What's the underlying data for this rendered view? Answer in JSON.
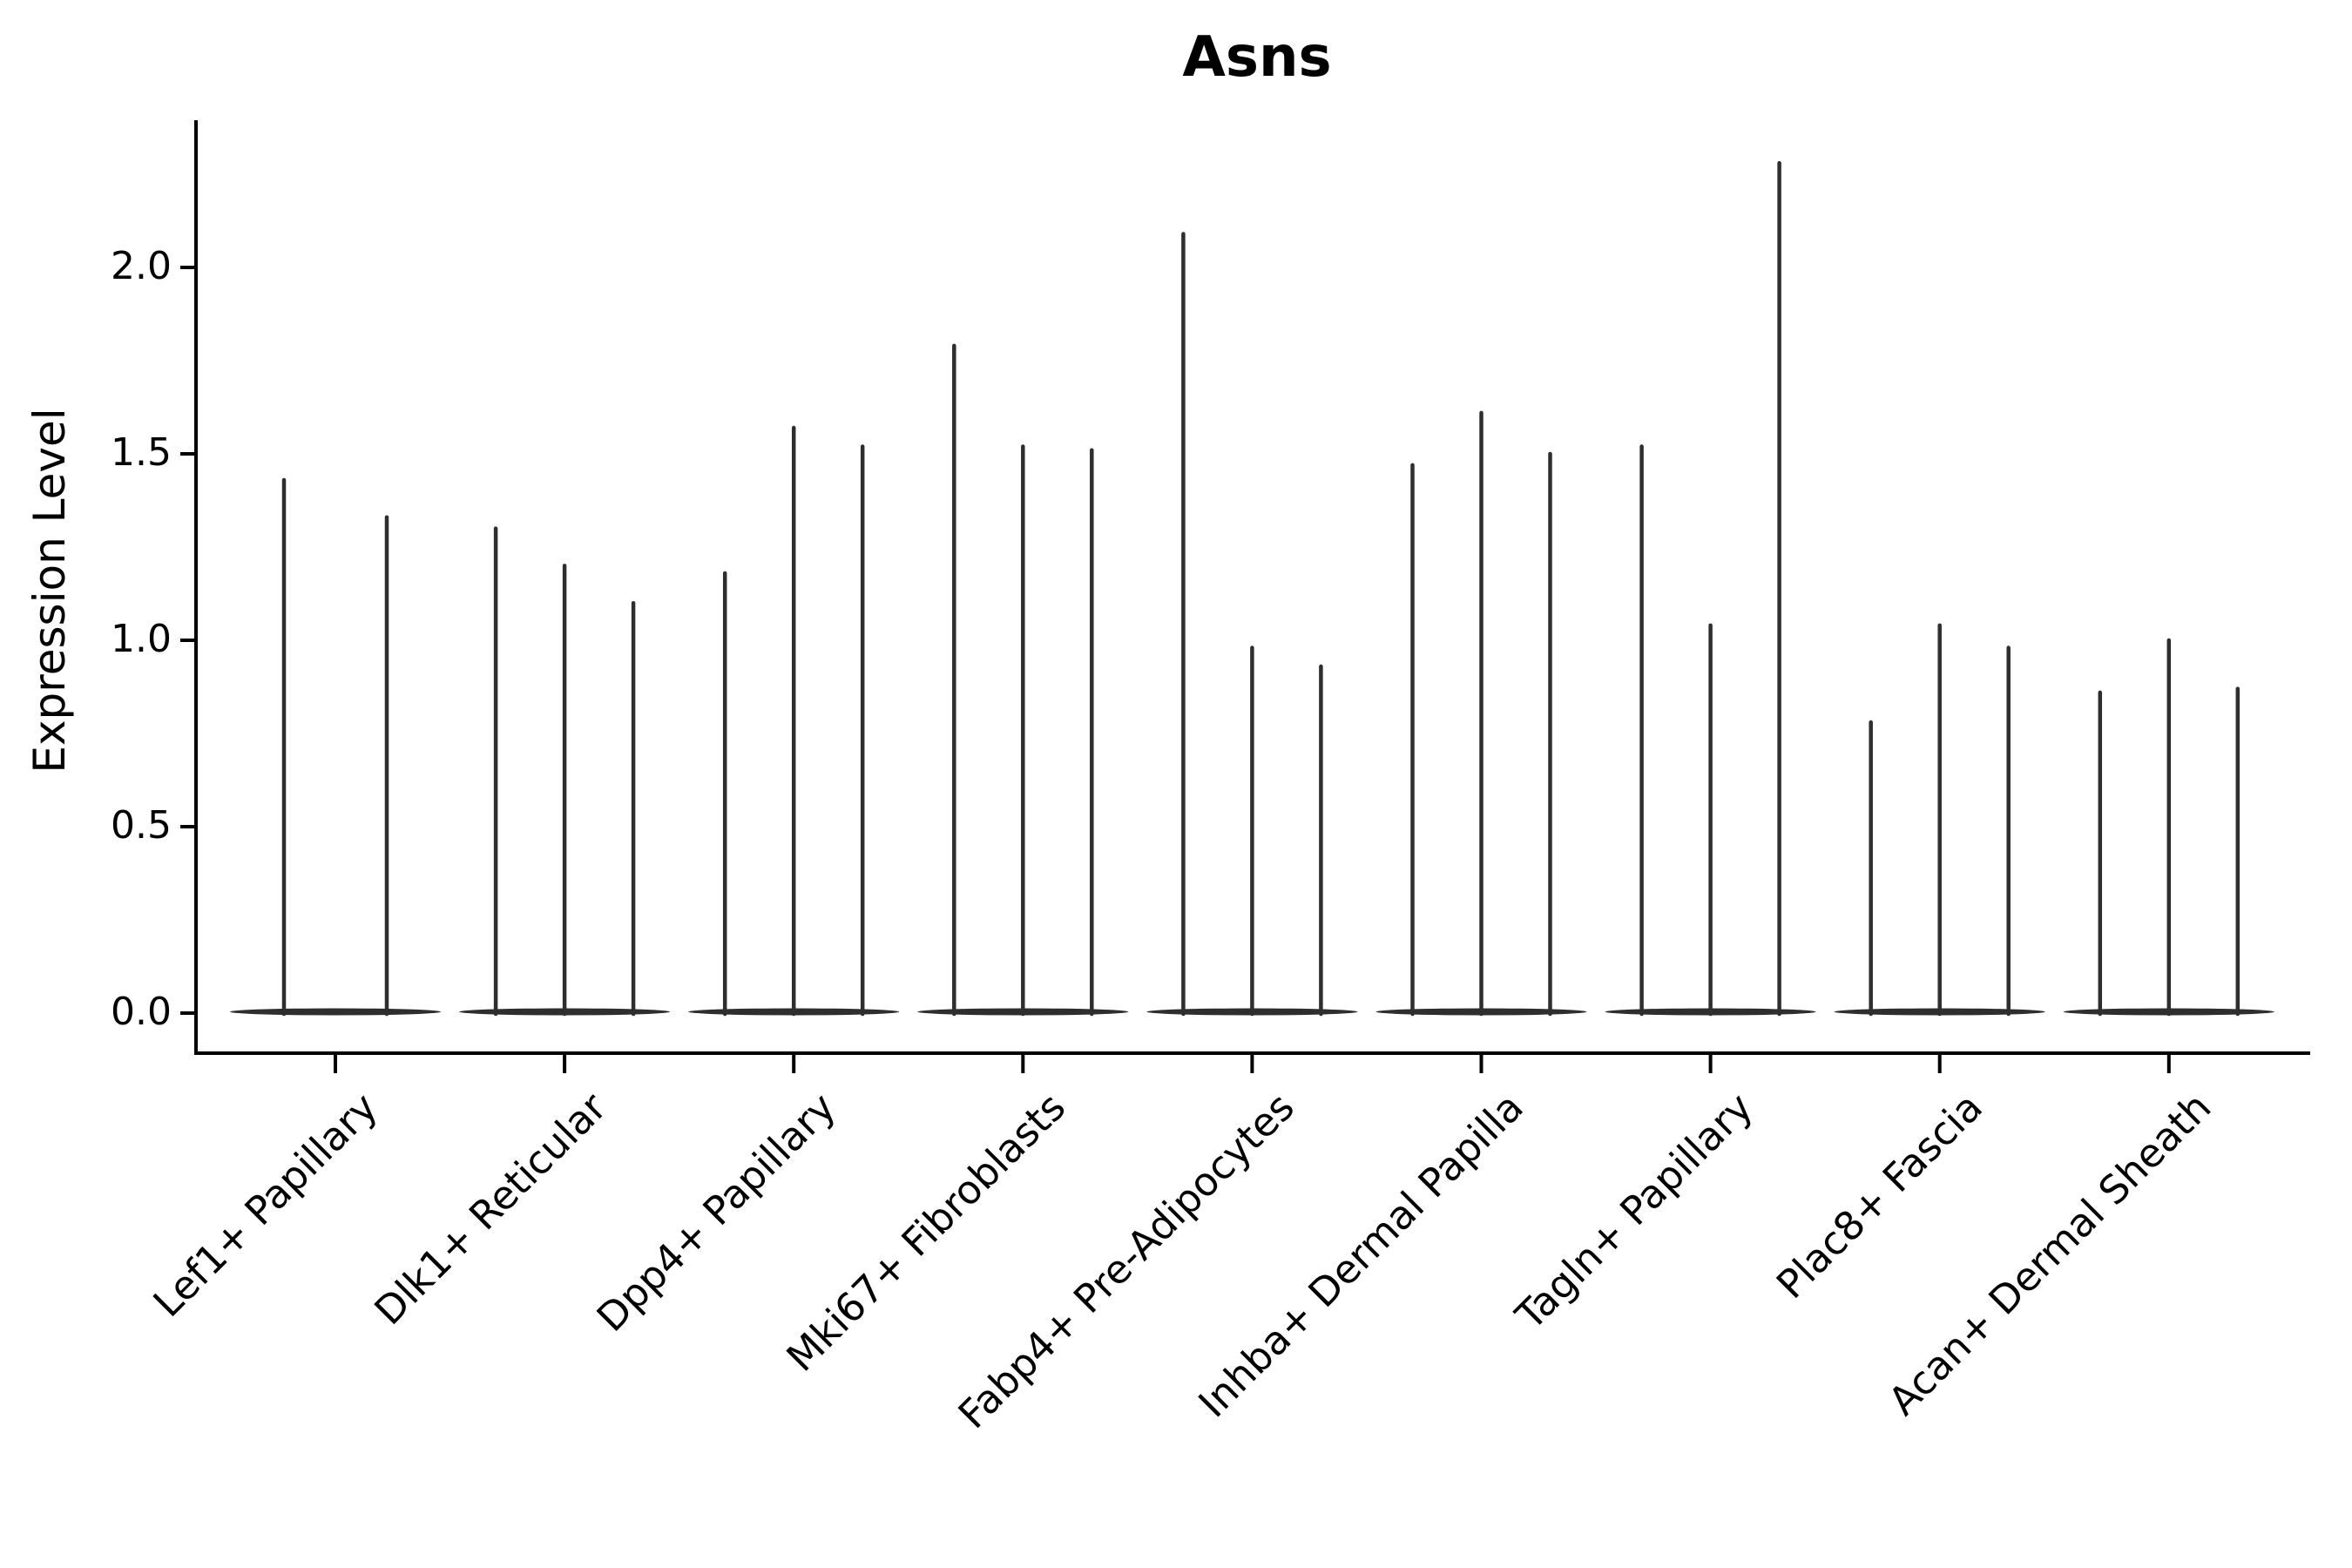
{
  "title": "Asns",
  "chart_data": {
    "type": "violin",
    "title": "Asns",
    "xlabel": "",
    "ylabel": "Expression Level",
    "ylim": [
      -0.11,
      2.39
    ],
    "yticks": [
      0.0,
      0.5,
      1.0,
      1.5,
      2.0
    ],
    "ytick_labels": [
      "0.0",
      "0.5",
      "1.0",
      "1.5",
      "2.0"
    ],
    "grid": false,
    "legend_position": "none",
    "baseline_value": 0.0,
    "description": "Stacked-violin style expression plot; each category holds thin violins (mass at 0) whose spikes reach the listed maximum expression values",
    "categories": [
      "Lef1+ Papillary",
      "Dlk1+ Reticular",
      "Dpp4+ Papillary",
      "Mki67+ Fibroblasts",
      "Fabp4+ Pre-Adipocytes",
      "Inhba+ Dermal Papilla",
      "Tagln+ Papillary",
      "Plac8+ Fascia",
      "Acan+ Dermal Sheath"
    ],
    "groups": [
      {
        "category": "Lef1+ Papillary",
        "violin_maxima": [
          1.43,
          1.33
        ]
      },
      {
        "category": "Dlk1+ Reticular",
        "violin_maxima": [
          1.3,
          1.2,
          1.1
        ]
      },
      {
        "category": "Dpp4+ Papillary",
        "violin_maxima": [
          1.18,
          1.57,
          1.52
        ]
      },
      {
        "category": "Mki67+ Fibroblasts",
        "violin_maxima": [
          1.79,
          1.52,
          1.51
        ]
      },
      {
        "category": "Fabp4+ Pre-Adipocytes",
        "violin_maxima": [
          2.09,
          0.98,
          0.93
        ]
      },
      {
        "category": "Inhba+ Dermal Papilla",
        "violin_maxima": [
          1.47,
          1.61,
          1.5
        ]
      },
      {
        "category": "Tagln+ Papillary",
        "violin_maxima": [
          1.52,
          1.04,
          2.28
        ]
      },
      {
        "category": "Plac8+ Fascia",
        "violin_maxima": [
          0.78,
          1.04,
          0.98
        ]
      },
      {
        "category": "Acan+ Dermal Sheath",
        "violin_maxima": [
          0.86,
          1.0,
          0.87
        ]
      }
    ],
    "colors": {
      "violin": "#2e2e2e",
      "axis": "#000000",
      "text": "#000000",
      "background": "#ffffff"
    }
  }
}
